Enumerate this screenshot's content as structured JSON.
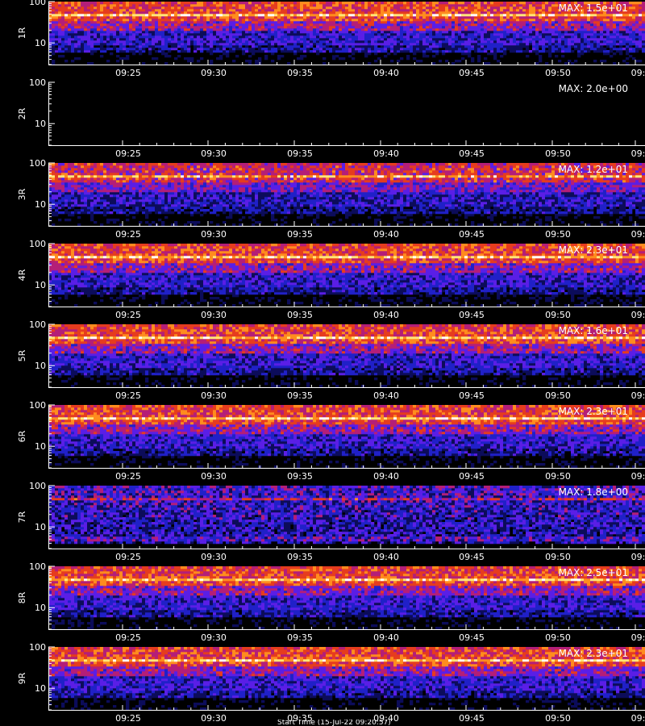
{
  "chart_data": [
    {
      "type": "heatmap",
      "channel": "1R",
      "max_label": "MAX: 1.5e+01",
      "max_value": 15.0,
      "x_ticks": [
        "09:25",
        "09:30",
        "09:35",
        "09:40",
        "09:45",
        "09:50",
        "09:5"
      ],
      "y_ticks": [
        "100",
        "10"
      ],
      "yscale": "log",
      "ylim": [
        3,
        100
      ],
      "grid": false
    },
    {
      "type": "heatmap",
      "channel": "2R",
      "max_label": "MAX: 2.0e+00",
      "max_value": 2.0,
      "x_ticks": [
        "09:25",
        "09:30",
        "09:35",
        "09:40",
        "09:45",
        "09:50",
        "09:5"
      ],
      "y_ticks": [
        "100",
        "10"
      ],
      "yscale": "log",
      "ylim": [
        3,
        100
      ],
      "grid": false
    },
    {
      "type": "heatmap",
      "channel": "3R",
      "max_label": "MAX: 1.2e+01",
      "max_value": 12.0,
      "x_ticks": [
        "09:25",
        "09:30",
        "09:35",
        "09:40",
        "09:45",
        "09:50",
        "09:5"
      ],
      "y_ticks": [
        "100",
        "10"
      ],
      "yscale": "log",
      "ylim": [
        3,
        100
      ],
      "grid": false
    },
    {
      "type": "heatmap",
      "channel": "4R",
      "max_label": "MAX: 2.3e+01",
      "max_value": 23.0,
      "x_ticks": [
        "09:25",
        "09:30",
        "09:35",
        "09:40",
        "09:45",
        "09:50",
        "09:5"
      ],
      "y_ticks": [
        "100",
        "10"
      ],
      "yscale": "log",
      "ylim": [
        3,
        100
      ],
      "grid": false
    },
    {
      "type": "heatmap",
      "channel": "5R",
      "max_label": "MAX: 1.6e+01",
      "max_value": 16.0,
      "x_ticks": [
        "09:25",
        "09:30",
        "09:35",
        "09:40",
        "09:45",
        "09:50",
        "09:5"
      ],
      "y_ticks": [
        "100",
        "10"
      ],
      "yscale": "log",
      "ylim": [
        3,
        100
      ],
      "grid": false
    },
    {
      "type": "heatmap",
      "channel": "6R",
      "max_label": "MAX: 2.3e+01",
      "max_value": 23.0,
      "x_ticks": [
        "09:25",
        "09:30",
        "09:35",
        "09:40",
        "09:45",
        "09:50",
        "09:5"
      ],
      "y_ticks": [
        "100",
        "10"
      ],
      "yscale": "log",
      "ylim": [
        3,
        100
      ],
      "grid": false
    },
    {
      "type": "heatmap",
      "channel": "7R",
      "max_label": "MAX: 1.8e+00",
      "max_value": 1.8,
      "x_ticks": [
        "09:25",
        "09:30",
        "09:35",
        "09:40",
        "09:45",
        "09:50",
        "09:5"
      ],
      "y_ticks": [
        "100",
        "10"
      ],
      "yscale": "log",
      "ylim": [
        3,
        100
      ],
      "grid": false
    },
    {
      "type": "heatmap",
      "channel": "8R",
      "max_label": "MAX: 2.5e+01",
      "max_value": 25.0,
      "x_ticks": [
        "09:25",
        "09:30",
        "09:35",
        "09:40",
        "09:45",
        "09:50",
        "09:5"
      ],
      "y_ticks": [
        "100",
        "10"
      ],
      "yscale": "log",
      "ylim": [
        3,
        100
      ],
      "grid": false
    },
    {
      "type": "heatmap",
      "channel": "9R",
      "max_label": "MAX: 2.3e+01",
      "max_value": 23.0,
      "x_ticks": [
        "09:25",
        "09:30",
        "09:35",
        "09:40",
        "09:45",
        "09:50",
        "09:5"
      ],
      "y_ticks": [
        "100",
        "10"
      ],
      "yscale": "log",
      "ylim": [
        3,
        100
      ],
      "grid": false
    }
  ],
  "footer_text": "Start Time (15-Jul-22 09:20:57)",
  "colors": {
    "background": "#000000",
    "axis": "#ffffff",
    "text": "#ffffff",
    "colormap": [
      "#000000",
      "#0c0c5a",
      "#2020c8",
      "#5a1ee6",
      "#b41e78",
      "#e63c1e",
      "#ff8c1e",
      "#ffe678",
      "#ffffff"
    ]
  }
}
